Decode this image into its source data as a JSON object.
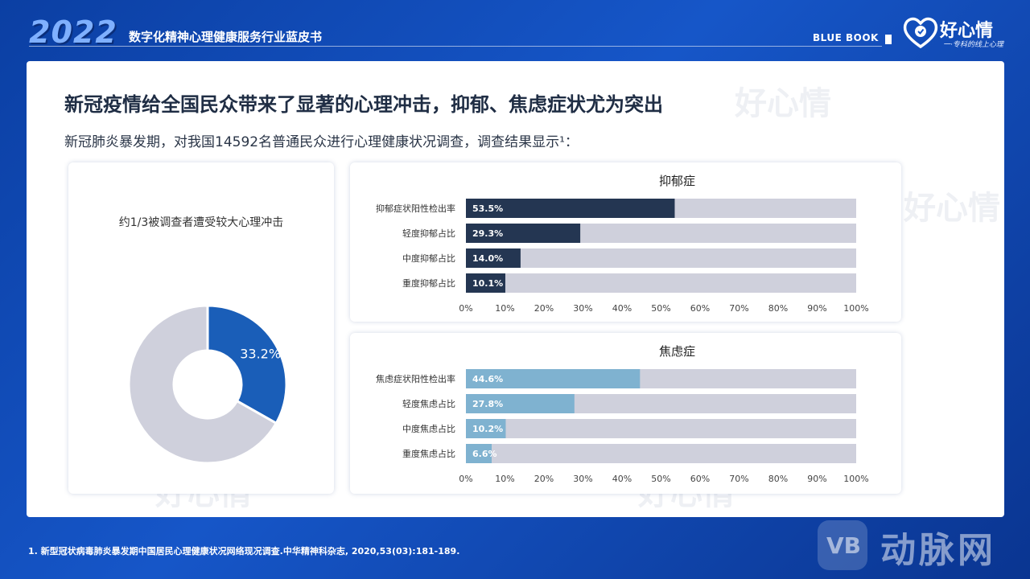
{
  "header": {
    "year": "2022",
    "book_title": "数字化精神心理健康服务行业蓝皮书",
    "blue_book": "BLUE BOOK",
    "logo_text": "好心情",
    "logo_sub": "一·专科的线上心理"
  },
  "slide": {
    "title": "新冠疫情给全国民众带来了显著的心理冲击，抑郁、焦虑症状尤为突出",
    "subtitle": "新冠肺炎暴发期，对我国14592名普通民众进行心理健康状况调查，调查结果显示¹："
  },
  "watermark": "好心情",
  "footnote": "1. 新型冠状病毒肺炎暴发期中国居民心理健康状况网络现况调查.中华精神科杂志, 2020,53(03):181-189.",
  "bottom_brand": {
    "letters": "VB",
    "text": "动脉网"
  },
  "chart_data": [
    {
      "type": "pie",
      "title": "约1/3被调查者遭受较大心理冲击",
      "slices": [
        {
          "value": 33.2,
          "label": "33.2%",
          "color": "#1a5eb8"
        },
        {
          "value": 66.8,
          "label": "",
          "color": "#cfd0dc"
        }
      ]
    },
    {
      "type": "bar",
      "orientation": "horizontal",
      "title": "抑郁症",
      "categories": [
        "抑郁症状阳性检出率",
        "轻度抑郁占比",
        "中度抑郁占比",
        "重度抑郁占比"
      ],
      "values": [
        53.5,
        29.3,
        14.0,
        10.1
      ],
      "value_labels": [
        "53.5%",
        "29.3%",
        "14.0%",
        "10.1%"
      ],
      "xlim": [
        0,
        100
      ],
      "ticks": [
        "0%",
        "10%",
        "20%",
        "30%",
        "40%",
        "50%",
        "60%",
        "70%",
        "80%",
        "90%",
        "100%"
      ],
      "bar_color": "#243652",
      "track_color": "#cfd0dc"
    },
    {
      "type": "bar",
      "orientation": "horizontal",
      "title": "焦虑症",
      "categories": [
        "焦虑症状阳性检出率",
        "轻度焦虑占比",
        "中度焦虑占比",
        "重度焦虑占比"
      ],
      "values": [
        44.6,
        27.8,
        10.2,
        6.6
      ],
      "value_labels": [
        "44.6%",
        "27.8%",
        "10.2%",
        "6.6%"
      ],
      "xlim": [
        0,
        100
      ],
      "ticks": [
        "0%",
        "10%",
        "20%",
        "30%",
        "40%",
        "50%",
        "60%",
        "70%",
        "80%",
        "90%",
        "100%"
      ],
      "bar_color": "#7fb2d0",
      "track_color": "#cfd0dc"
    }
  ]
}
